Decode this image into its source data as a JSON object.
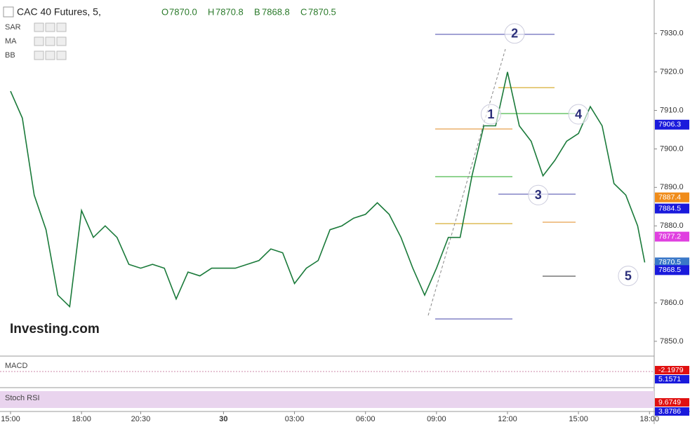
{
  "chart_data": {
    "type": "line",
    "title": "CAC 40 Futures, 5,",
    "watermark": "Investing.com",
    "ohlc": {
      "keys": [
        "O",
        "H",
        "B",
        "C"
      ],
      "values": [
        7870,
        7870.8,
        7868.8,
        7870.5
      ],
      "value_labels": [
        "7870.0",
        "7870.8",
        "7868.8",
        "7870.5"
      ]
    },
    "indicators": [
      "SAR",
      "MA",
      "BB"
    ],
    "x": [
      0,
      0.5,
      1,
      1.5,
      2,
      2.5,
      3,
      3.5,
      4,
      4.5,
      5,
      5.5,
      6,
      6.5,
      7,
      7.5,
      8,
      8.5,
      9,
      9.5,
      10,
      10.5,
      11,
      11.5,
      12,
      12.5,
      13,
      13.5,
      14,
      14.5,
      15,
      15.5,
      16,
      16.5,
      17,
      17.5,
      18,
      18.5,
      19,
      19.5,
      20,
      20.5,
      21,
      21.5,
      22,
      22.5,
      23,
      23.5,
      24,
      24.5,
      25,
      25.5,
      26,
      26.5,
      26.8
    ],
    "series": [
      {
        "name": "CAC 40 Futures",
        "color": "#1a7a3a",
        "values": [
          7915,
          7908,
          7888,
          7879,
          7862,
          7859,
          7884,
          7877,
          7880,
          7877,
          7870,
          7869,
          7870,
          7869,
          7861,
          7868,
          7867,
          7869,
          7869,
          7869,
          7870,
          7871,
          7874,
          7873,
          7865,
          7869,
          7871,
          7879,
          7880,
          7882,
          7883,
          7886,
          7883,
          7877,
          7869,
          7862,
          7869,
          7877,
          7877,
          7893,
          7906,
          7906,
          7920,
          7906,
          7902,
          7893,
          7897,
          7902,
          7904,
          7911,
          7906,
          7891,
          7888,
          7880,
          7870.5
        ]
      }
    ],
    "xlim": [
      -0.445,
      27.2
    ],
    "ylim": [
      7846.7,
      7938.7
    ],
    "xticks": [
      {
        "value": 0,
        "label": "15:00"
      },
      {
        "value": 3,
        "label": "18:00"
      },
      {
        "value": 5.5,
        "label": "20:30"
      },
      {
        "value": 9,
        "label": "30"
      },
      {
        "value": 12,
        "label": "03:00"
      },
      {
        "value": 15,
        "label": "06:00"
      },
      {
        "value": 18,
        "label": "09:00"
      },
      {
        "value": 21,
        "label": "12:00"
      },
      {
        "value": 24,
        "label": "15:00"
      },
      {
        "value": 27,
        "label": "18:00"
      }
    ],
    "yticks": [
      {
        "value": 7850,
        "label": "7850.0"
      },
      {
        "value": 7860,
        "label": "7860.0"
      },
      {
        "value": 7870,
        "label": "7870.0"
      },
      {
        "value": 7880,
        "label": "7880.0"
      },
      {
        "value": 7890,
        "label": "7890.0"
      },
      {
        "value": 7900,
        "label": "7900.0"
      },
      {
        "value": 7910,
        "label": "7910.0"
      },
      {
        "value": 7920,
        "label": "7920.0"
      },
      {
        "value": 7930,
        "label": "7930.0"
      }
    ],
    "price_tags": [
      {
        "value": 7906.3,
        "color": "#1a1adc"
      },
      {
        "value": 7887.4,
        "color": "#f08c1a"
      },
      {
        "value": 7884.5,
        "color": "#1a1adc"
      },
      {
        "value": 7877.2,
        "color": "#e040e0"
      },
      {
        "value": 7870.5,
        "color": "#3a78c8"
      },
      {
        "value": 7868.5,
        "color": "#1a1adc"
      }
    ],
    "wave_labels": [
      {
        "label": "1",
        "x": 20.3,
        "y": 7909
      },
      {
        "label": "2",
        "x": 21.3,
        "y": 7930
      },
      {
        "label": "3",
        "x": 22.3,
        "y": 7888
      },
      {
        "label": "4",
        "x": 24.0,
        "y": 7909
      },
      {
        "label": "5",
        "x": 26.1,
        "y": 7867
      }
    ],
    "panels": [
      {
        "name": "MACD",
        "tags": [
          {
            "value": -2.1979,
            "color": "#e01010"
          },
          {
            "value": 5.1571,
            "color": "#1a1adc"
          }
        ]
      },
      {
        "name": "Stoch RSI",
        "tags": [
          {
            "value": 9.6749,
            "color": "#e01010"
          },
          {
            "value": 3.8786,
            "color": "#1a1adc"
          }
        ]
      }
    ]
  }
}
